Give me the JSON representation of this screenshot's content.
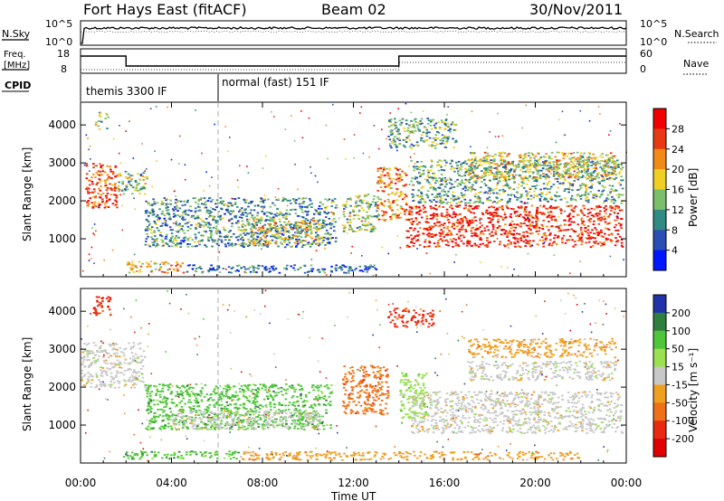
{
  "header": {
    "station": "Fort Hays East (fitACF)",
    "beam": "Beam 02",
    "date": "30/Nov/2011"
  },
  "noise_panel": {
    "left_label": "N.Sky",
    "right_label": "N.Search",
    "left_ticks": [
      "10^5",
      "10^0"
    ],
    "right_ticks": [
      "10^5",
      "10^0"
    ]
  },
  "freq_panel": {
    "left_label_line1": "Freq.",
    "left_label_line2": "[MHz]",
    "right_label": "Nave",
    "left_ticks": [
      "18",
      "8"
    ],
    "right_ticks": [
      "60",
      "0"
    ]
  },
  "cpid": {
    "label": "CPID",
    "segments": [
      {
        "name": "themis 3300 IF",
        "start_hour": 0,
        "end_hour": 6
      },
      {
        "name": "normal (fast) 151 IF",
        "start_hour": 6,
        "end_hour": 24
      }
    ]
  },
  "time_axis": {
    "label": "Time UT",
    "ticks": [
      "00:00",
      "04:00",
      "08:00",
      "12:00",
      "16:00",
      "20:00",
      "00:00"
    ]
  },
  "chart_data": [
    {
      "type": "heatmap",
      "quantity": "Power",
      "ylabel": "Slant Range [km]",
      "yticks": [
        "1000",
        "2000",
        "3000",
        "4000"
      ],
      "ylim": [
        0,
        4600
      ],
      "xlim_hours": [
        0,
        24
      ],
      "colorbar": {
        "label": "Power [dB]",
        "ticks": [
          "4",
          "8",
          "12",
          "16",
          "20",
          "24",
          "28"
        ],
        "colors": [
          "#0018ff",
          "#2a4fb2",
          "#318a83",
          "#7cbf6a",
          "#eecf22",
          "#f28a18",
          "#e73a12",
          "#f00000"
        ]
      },
      "regions": [
        {
          "t0": 0.2,
          "t1": 1.6,
          "r0": 1800,
          "r1": 3000,
          "level": 0.82
        },
        {
          "t0": 1.6,
          "t1": 2.9,
          "r0": 2200,
          "r1": 2800,
          "level": 0.45
        },
        {
          "t0": 0.6,
          "t1": 1.2,
          "r0": 3900,
          "r1": 4400,
          "level": 0.45
        },
        {
          "t0": 2.8,
          "t1": 11.2,
          "r0": 800,
          "r1": 2100,
          "level": 0.32
        },
        {
          "t0": 7.0,
          "t1": 10.5,
          "r0": 850,
          "r1": 1550,
          "level": 0.55
        },
        {
          "t0": 2.0,
          "t1": 4.6,
          "r0": 120,
          "r1": 420,
          "level": 0.65
        },
        {
          "t0": 4.6,
          "t1": 13.0,
          "r0": 120,
          "r1": 330,
          "level": 0.22
        },
        {
          "t0": 11.5,
          "t1": 13.0,
          "r0": 1200,
          "r1": 2200,
          "level": 0.45
        },
        {
          "t0": 13.0,
          "t1": 14.3,
          "r0": 1500,
          "r1": 2900,
          "level": 0.7
        },
        {
          "t0": 14.3,
          "t1": 23.8,
          "r0": 800,
          "r1": 1900,
          "level": 0.88
        },
        {
          "t0": 14.5,
          "t1": 23.8,
          "r0": 1950,
          "r1": 3100,
          "level": 0.38
        },
        {
          "t0": 13.5,
          "t1": 16.5,
          "r0": 3400,
          "r1": 4200,
          "level": 0.4
        },
        {
          "t0": 17.0,
          "t1": 23.5,
          "r0": 2600,
          "r1": 3300,
          "level": 0.55
        }
      ]
    },
    {
      "type": "heatmap",
      "quantity": "Velocity",
      "ylabel": "Slant Range [km]",
      "yticks": [
        "1000",
        "2000",
        "3000",
        "4000"
      ],
      "ylim": [
        0,
        4600
      ],
      "xlim_hours": [
        0,
        24
      ],
      "colorbar": {
        "label": "Velocity [m s⁻¹]",
        "ticks": [
          "200",
          "100",
          "50",
          "15",
          "-15",
          "-50",
          "-100",
          "-200"
        ],
        "colors": [
          "#2233aa",
          "#2f7f3f",
          "#4fc63a",
          "#9be050",
          "#c8c8c8",
          "#f0a020",
          "#f07018",
          "#e82a10",
          "#e00000"
        ]
      },
      "regions": [
        {
          "t0": 0.0,
          "t1": 2.8,
          "r0": 2000,
          "r1": 3200,
          "class": 4
        },
        {
          "t0": 0.5,
          "t1": 1.3,
          "r0": 3900,
          "r1": 4400,
          "class": 7
        },
        {
          "t0": 2.8,
          "t1": 11.0,
          "r0": 900,
          "r1": 2100,
          "class": 2
        },
        {
          "t0": 4.0,
          "t1": 10.5,
          "r0": 900,
          "r1": 1400,
          "class": 4
        },
        {
          "t0": 1.8,
          "t1": 7.0,
          "r0": 120,
          "r1": 330,
          "class": 2
        },
        {
          "t0": 7.0,
          "t1": 22.0,
          "r0": 100,
          "r1": 320,
          "class": 5
        },
        {
          "t0": 11.5,
          "t1": 13.5,
          "r0": 1300,
          "r1": 2600,
          "class": 6
        },
        {
          "t0": 14.5,
          "t1": 23.8,
          "r0": 800,
          "r1": 1900,
          "class": 4
        },
        {
          "t0": 14.0,
          "t1": 15.2,
          "r0": 1200,
          "r1": 2400,
          "class": 3
        },
        {
          "t0": 17.0,
          "t1": 23.5,
          "r0": 2200,
          "r1": 2700,
          "class": 4
        },
        {
          "t0": 17.0,
          "t1": 23.5,
          "r0": 2800,
          "r1": 3300,
          "class": 5
        },
        {
          "t0": 13.5,
          "t1": 15.5,
          "r0": 3600,
          "r1": 4100,
          "class": 7
        }
      ]
    }
  ]
}
